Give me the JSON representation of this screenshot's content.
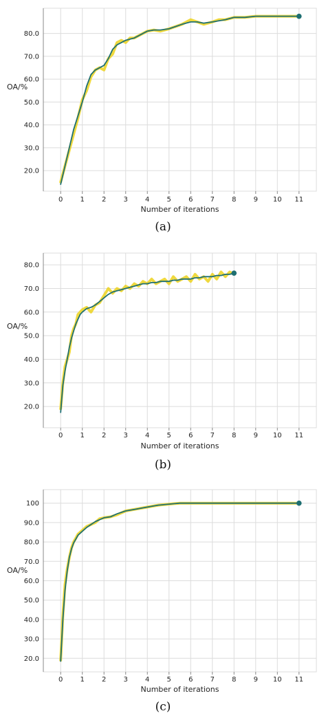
{
  "colors": {
    "raw_series": "#ecd21d",
    "smoothed_series": "#1e6f72",
    "endpoint_marker": "#1e6f72",
    "grid": "#dcdcdc",
    "axis": "#888888"
  },
  "chart_data": [
    {
      "type": "line",
      "panel_label": "(a)",
      "xlabel": "Number of iterations",
      "ylabel": "OA/%",
      "xlim": [
        -0.8,
        11.8
      ],
      "ylim": [
        11,
        91
      ],
      "x_ticks": [
        "0",
        "1",
        "2",
        "3",
        "4",
        "5",
        "6",
        "7",
        "8",
        "9",
        "10",
        "11"
      ],
      "y_ticks": [
        "20.0",
        "30.0",
        "40.0",
        "50.0",
        "60.0",
        "70.0",
        "80.0"
      ],
      "grid": true,
      "series": [
        {
          "style": "raw",
          "x": [
            0,
            0.2,
            0.4,
            0.6,
            0.8,
            1.0,
            1.2,
            1.4,
            1.6,
            1.8,
            2.0,
            2.2,
            2.4,
            2.6,
            2.8,
            3.0,
            3.2,
            3.4,
            3.6,
            3.8,
            4.0,
            4.3,
            4.6,
            5.0,
            5.3,
            5.6,
            6.0,
            6.3,
            6.6,
            7.0,
            7.3,
            7.6,
            8.0,
            8.5,
            9.0,
            9.5,
            10.0,
            10.5,
            11.0
          ],
          "y": [
            15,
            22,
            29,
            36,
            43,
            51,
            55,
            61,
            64,
            65,
            64,
            69,
            71,
            76,
            77,
            76,
            78,
            78,
            79,
            80,
            81,
            81.5,
            81,
            82,
            83,
            84,
            86,
            85,
            84,
            85,
            86,
            86,
            87,
            87,
            87.5,
            87.5,
            87.5,
            87.5,
            87.5
          ]
        },
        {
          "style": "smoothed",
          "x": [
            0,
            0.2,
            0.4,
            0.6,
            0.8,
            1.0,
            1.2,
            1.4,
            1.6,
            1.8,
            2.0,
            2.2,
            2.4,
            2.6,
            2.8,
            3.0,
            3.2,
            3.4,
            3.6,
            3.8,
            4.0,
            4.3,
            4.6,
            5.0,
            5.3,
            5.6,
            6.0,
            6.3,
            6.6,
            7.0,
            7.3,
            7.6,
            8.0,
            8.5,
            9.0,
            9.5,
            10.0,
            10.5,
            11.0
          ],
          "y": [
            14,
            22,
            30,
            38,
            44,
            50,
            57,
            62,
            64,
            65,
            66,
            69,
            73,
            75,
            76,
            77,
            77.5,
            78,
            79,
            80,
            81,
            81.5,
            81.5,
            82,
            83,
            84,
            85,
            85,
            84.5,
            85,
            85.5,
            86,
            87,
            87,
            87.5,
            87.5,
            87.5,
            87.5,
            87.5
          ]
        }
      ],
      "endpoint": {
        "x": 11,
        "y": 87.5
      }
    },
    {
      "type": "line",
      "panel_label": "(b)",
      "xlabel": "Number of iterations",
      "ylabel": "OA/%",
      "xlim": [
        -0.8,
        11.8
      ],
      "ylim": [
        11,
        85
      ],
      "x_ticks": [
        "0",
        "1",
        "2",
        "3",
        "4",
        "5",
        "6",
        "7",
        "8",
        "9",
        "10",
        "11"
      ],
      "y_ticks": [
        "20.0",
        "30.0",
        "40.0",
        "50.0",
        "60.0",
        "70.0",
        "80.0"
      ],
      "grid": true,
      "series": [
        {
          "style": "raw",
          "x": [
            0,
            0.1,
            0.2,
            0.3,
            0.4,
            0.5,
            0.6,
            0.7,
            0.8,
            0.9,
            1.0,
            1.2,
            1.4,
            1.6,
            1.8,
            2.0,
            2.2,
            2.4,
            2.6,
            2.8,
            3.0,
            3.2,
            3.4,
            3.6,
            3.8,
            4.0,
            4.2,
            4.4,
            4.6,
            4.8,
            5.0,
            5.2,
            5.4,
            5.6,
            5.8,
            6.0,
            6.2,
            6.4,
            6.6,
            6.8,
            7.0,
            7.2,
            7.4,
            7.6,
            7.8,
            8.0
          ],
          "y": [
            19,
            30,
            37,
            40,
            43,
            50,
            53,
            55,
            59,
            60,
            61,
            62,
            60,
            63,
            64,
            67,
            70,
            68,
            70,
            69,
            71,
            70,
            72,
            71,
            73,
            72,
            74,
            72,
            73,
            74,
            72,
            75,
            73,
            74,
            75,
            73,
            76,
            74,
            75,
            73,
            76,
            74,
            77,
            75,
            77,
            76
          ]
        },
        {
          "style": "smoothed",
          "x": [
            0,
            0.1,
            0.2,
            0.3,
            0.4,
            0.5,
            0.6,
            0.7,
            0.8,
            0.9,
            1.0,
            1.2,
            1.4,
            1.6,
            1.8,
            2.0,
            2.2,
            2.4,
            2.6,
            2.8,
            3.0,
            3.2,
            3.4,
            3.6,
            3.8,
            4.0,
            4.2,
            4.4,
            4.6,
            4.8,
            5.0,
            5.2,
            5.4,
            5.6,
            5.8,
            6.0,
            6.2,
            6.4,
            6.6,
            6.8,
            7.0,
            7.2,
            7.4,
            7.6,
            7.8,
            8.0
          ],
          "y": [
            17.5,
            29,
            35,
            40,
            45,
            49,
            52,
            55,
            57,
            59,
            60,
            61.5,
            62,
            63,
            64.5,
            66,
            67.5,
            68.5,
            69,
            69.5,
            70,
            70.5,
            71,
            71.5,
            72,
            72,
            72.5,
            72.5,
            73,
            73,
            73,
            73.5,
            73.5,
            74,
            74,
            74,
            74.5,
            74.5,
            75,
            75,
            75,
            75.5,
            75.5,
            76,
            76,
            76.5
          ]
        }
      ],
      "endpoint": {
        "x": 8,
        "y": 76.5
      }
    },
    {
      "type": "line",
      "panel_label": "(c)",
      "xlabel": "Number of iterations",
      "ylabel": "OA/%",
      "xlim": [
        -0.8,
        11.8
      ],
      "ylim": [
        13,
        107
      ],
      "x_ticks": [
        "0",
        "1",
        "2",
        "3",
        "4",
        "5",
        "6",
        "7",
        "8",
        "9",
        "10",
        "11"
      ],
      "y_ticks": [
        "20.0",
        "30.0",
        "40.0",
        "50.0",
        "60.0",
        "70.0",
        "80.0",
        "90.0",
        "100"
      ],
      "grid": true,
      "series": [
        {
          "style": "raw",
          "x": [
            0,
            0.1,
            0.2,
            0.3,
            0.4,
            0.5,
            0.6,
            0.7,
            0.8,
            1.0,
            1.2,
            1.4,
            1.6,
            1.8,
            2.0,
            2.3,
            2.6,
            3.0,
            3.5,
            4.0,
            4.5,
            5.0,
            5.5,
            6.0,
            7.0,
            8.0,
            9.0,
            10.0,
            11.0
          ],
          "y": [
            19,
            42,
            58,
            66,
            72,
            77,
            80,
            82,
            84,
            86,
            88,
            89,
            90,
            92,
            92.5,
            93,
            94,
            96,
            97,
            98,
            99,
            99.5,
            100,
            100,
            100,
            100,
            100,
            100,
            100
          ]
        },
        {
          "style": "smoothed",
          "x": [
            0,
            0.1,
            0.2,
            0.3,
            0.4,
            0.5,
            0.6,
            0.7,
            0.8,
            1.0,
            1.2,
            1.4,
            1.6,
            1.8,
            2.0,
            2.3,
            2.6,
            3.0,
            3.5,
            4.0,
            4.5,
            5.0,
            5.5,
            6.0,
            7.0,
            8.0,
            9.0,
            10.0,
            11.0
          ],
          "y": [
            18.5,
            40,
            55,
            65,
            72,
            76.5,
            79.5,
            81.5,
            83.5,
            85.5,
            87.5,
            89,
            90.5,
            91.5,
            92.5,
            93,
            94.5,
            96,
            97,
            98,
            99,
            99.5,
            100,
            100,
            100,
            100,
            100,
            100,
            100
          ]
        }
      ],
      "endpoint": {
        "x": 11,
        "y": 100
      }
    }
  ]
}
